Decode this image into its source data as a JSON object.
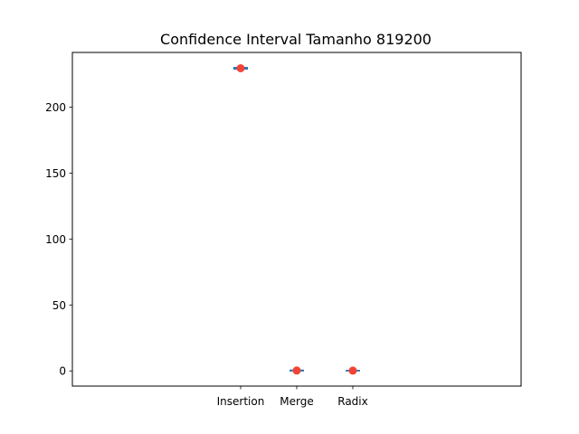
{
  "chart_data": {
    "type": "scatter",
    "title": "Confidence Interval Tamanho 819200",
    "xlabel": "",
    "ylabel": "",
    "categories": [
      "Insertion",
      "Merge",
      "Radix"
    ],
    "x_positions": [
      1,
      2,
      3
    ],
    "xlim": [
      -2,
      6
    ],
    "ylim": [
      -11.5,
      241.5
    ],
    "yticks": [
      0,
      50,
      100,
      150,
      200
    ],
    "series": [
      {
        "means": [
          229.5,
          0.3,
          0.2
        ],
        "ci_low": [
          229.0,
          0.1,
          0.1
        ],
        "ci_high": [
          230.0,
          0.5,
          0.3
        ],
        "point_color": "#f44336",
        "line_color": "#1f77b4"
      }
    ],
    "grid": false,
    "legend": "none"
  }
}
